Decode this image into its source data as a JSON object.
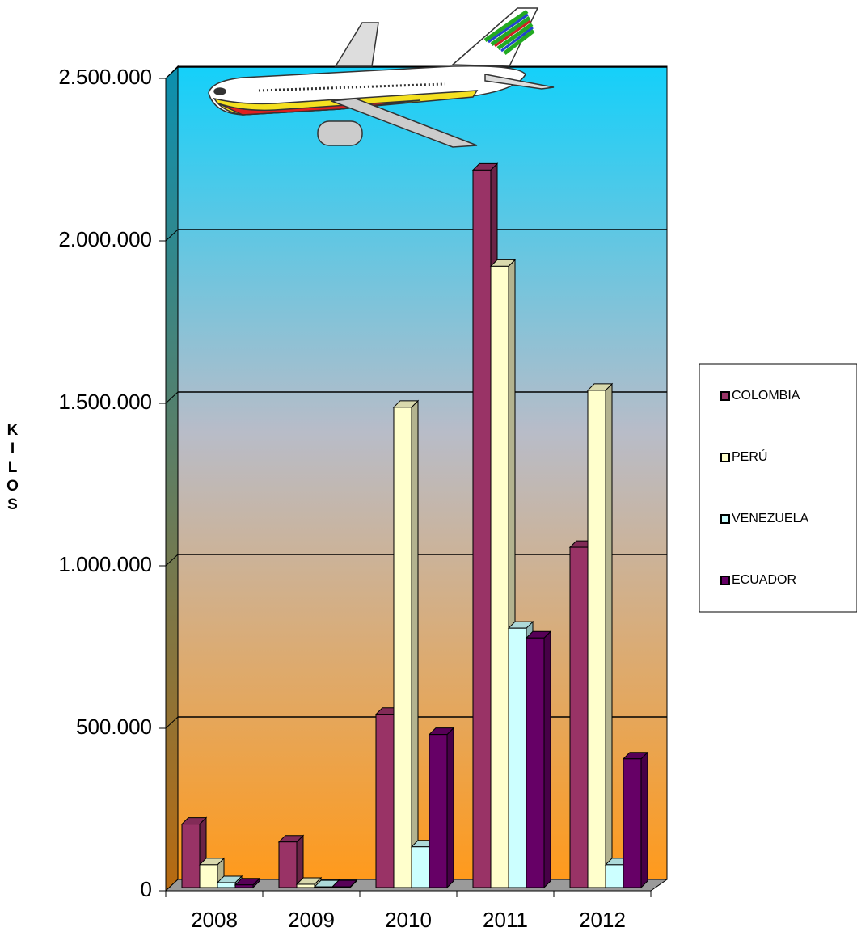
{
  "chart_data": {
    "type": "bar3d",
    "y_label": "KILOS",
    "categories": [
      "2008",
      "2009",
      "2010",
      "2011",
      "2012"
    ],
    "series": [
      {
        "name": "COLOMBIA",
        "color": "#993366",
        "values": [
          205000,
          150000,
          543000,
          2218000,
          1057000
        ]
      },
      {
        "name": "PERÚ",
        "color": "#ffffcc",
        "values": [
          80000,
          20000,
          1488000,
          1922000,
          1540000
        ]
      },
      {
        "name": "VENEZUELA",
        "color": "#ccffff",
        "values": [
          25000,
          12000,
          135000,
          808000,
          80000
        ]
      },
      {
        "name": "ECUADOR",
        "color": "#660066",
        "values": [
          18000,
          12000,
          481000,
          778000,
          406000
        ]
      }
    ],
    "ylim": [
      0,
      2500000
    ],
    "yticks": [
      0,
      {
        "value": 500000,
        "label": "500.000"
      },
      {
        "value": 1000000,
        "label": "1.000.000"
      },
      {
        "value": 1500000,
        "label": "1.500.000"
      },
      {
        "value": 2000000,
        "label": "2.000.000"
      },
      {
        "value": 2500000,
        "label": "2.500.000"
      }
    ],
    "grid": true
  }
}
